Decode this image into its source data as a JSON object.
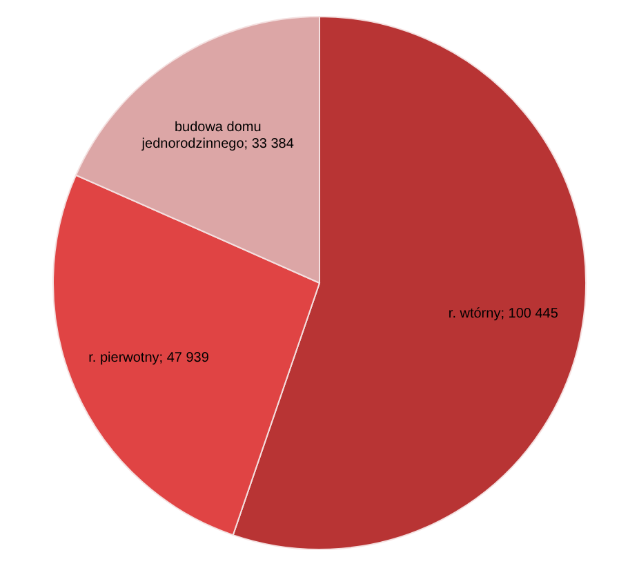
{
  "chart_data": {
    "type": "pie",
    "categories": [
      "r. wtórny",
      "r. pierwotny",
      "budowa domu jednorodzinnego"
    ],
    "values": [
      100445,
      47939,
      33384
    ],
    "value_labels": [
      "100 445",
      "47 939",
      "33 384"
    ],
    "colors": [
      "#b83434",
      "#e04444",
      "#dca6a6"
    ]
  }
}
